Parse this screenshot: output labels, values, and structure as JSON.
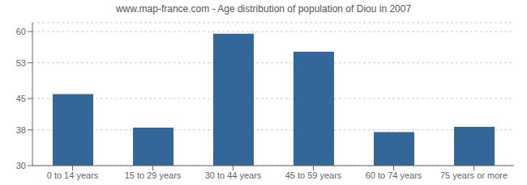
{
  "chart_data": {
    "type": "bar",
    "title": "www.map-france.com - Age distribution of population of Diou in 2007",
    "categories": [
      "0 to 14 years",
      "15 to 29 years",
      "30 to 44 years",
      "45 to 59 years",
      "60 to 74 years",
      "75 years or more"
    ],
    "values": [
      46.0,
      38.5,
      59.5,
      55.5,
      37.5,
      38.7
    ],
    "color": "#336699",
    "ylim": [
      30,
      62
    ],
    "yticks": [
      30,
      38,
      45,
      53,
      60
    ],
    "grid": true
  }
}
